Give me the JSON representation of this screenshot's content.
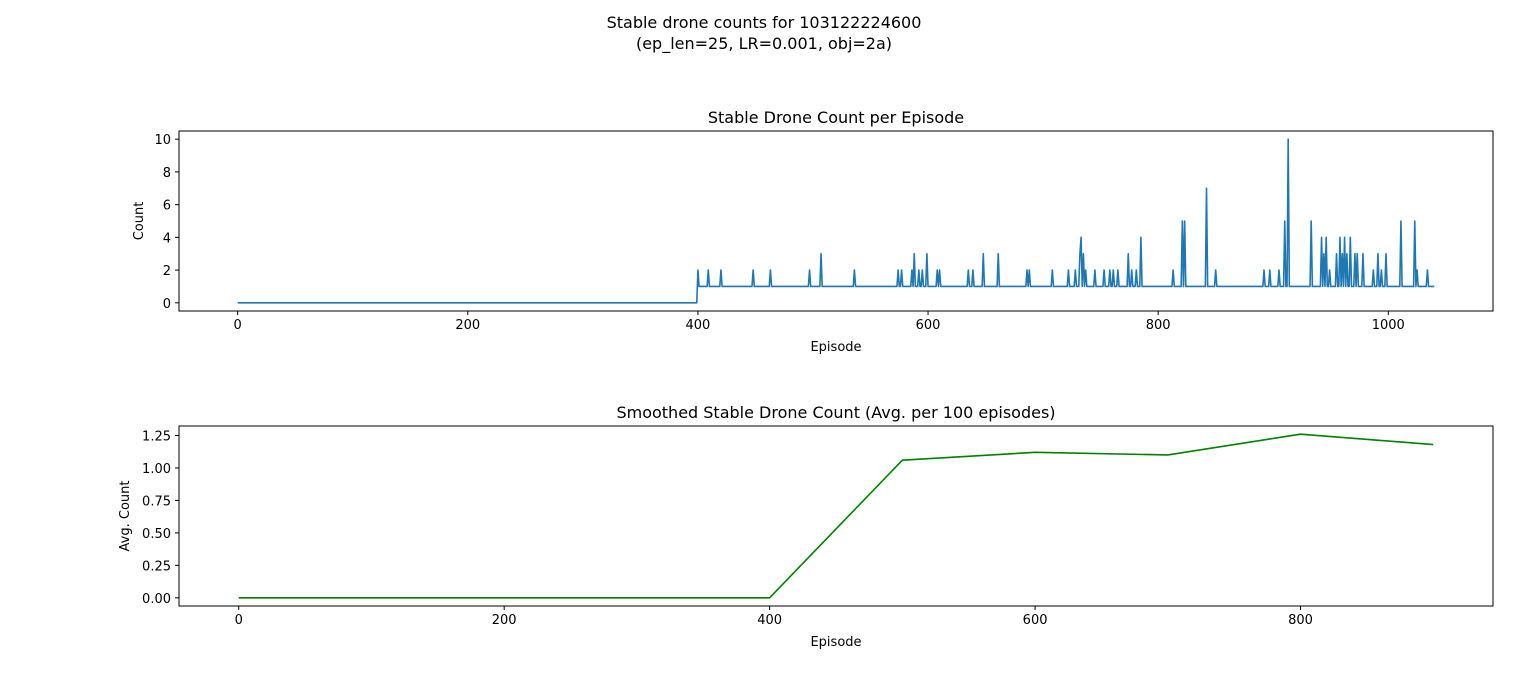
{
  "figure": {
    "suptitle_line1": "Stable drone counts for 103122224600",
    "suptitle_line2": "(ep_len=25, LR=0.001, obj=2a)"
  },
  "chart_data": [
    {
      "type": "line",
      "title": "Stable Drone Count per Episode",
      "xlabel": "Episode",
      "ylabel": "Count",
      "xlim": [
        -51,
        1091
      ],
      "ylim": [
        -0.5,
        10.5
      ],
      "xticks": [
        0,
        200,
        400,
        600,
        800,
        1000
      ],
      "yticks": [
        0,
        2,
        4,
        6,
        8,
        10
      ],
      "color": "#1f77b4",
      "grid": false,
      "series": [
        {
          "baseline_segments": [
            {
              "x_start": 0,
              "x_end": 399,
              "y": 0
            },
            {
              "x_start": 400,
              "x_end": 1040,
              "y": 1
            }
          ],
          "spikes": [
            {
              "x": 400,
              "y": 2
            },
            {
              "x": 409,
              "y": 2
            },
            {
              "x": 420,
              "y": 2
            },
            {
              "x": 448,
              "y": 2
            },
            {
              "x": 463,
              "y": 2
            },
            {
              "x": 497,
              "y": 2
            },
            {
              "x": 507,
              "y": 3
            },
            {
              "x": 536,
              "y": 2
            },
            {
              "x": 574,
              "y": 2
            },
            {
              "x": 577,
              "y": 2
            },
            {
              "x": 586,
              "y": 2
            },
            {
              "x": 588,
              "y": 3
            },
            {
              "x": 592,
              "y": 2
            },
            {
              "x": 595,
              "y": 2
            },
            {
              "x": 599,
              "y": 3
            },
            {
              "x": 608,
              "y": 2
            },
            {
              "x": 610,
              "y": 2
            },
            {
              "x": 635,
              "y": 2
            },
            {
              "x": 639,
              "y": 2
            },
            {
              "x": 648,
              "y": 3
            },
            {
              "x": 661,
              "y": 3
            },
            {
              "x": 686,
              "y": 2
            },
            {
              "x": 688,
              "y": 2
            },
            {
              "x": 708,
              "y": 2
            },
            {
              "x": 722,
              "y": 2
            },
            {
              "x": 728,
              "y": 2
            },
            {
              "x": 732,
              "y": 3
            },
            {
              "x": 733,
              "y": 4
            },
            {
              "x": 735,
              "y": 3
            },
            {
              "x": 737,
              "y": 2
            },
            {
              "x": 745,
              "y": 2
            },
            {
              "x": 753,
              "y": 2
            },
            {
              "x": 758,
              "y": 2
            },
            {
              "x": 761,
              "y": 2
            },
            {
              "x": 765,
              "y": 2
            },
            {
              "x": 774,
              "y": 3
            },
            {
              "x": 777,
              "y": 2
            },
            {
              "x": 781,
              "y": 2
            },
            {
              "x": 785,
              "y": 4
            },
            {
              "x": 813,
              "y": 2
            },
            {
              "x": 821,
              "y": 5
            },
            {
              "x": 823,
              "y": 5
            },
            {
              "x": 842,
              "y": 7
            },
            {
              "x": 850,
              "y": 2
            },
            {
              "x": 892,
              "y": 2
            },
            {
              "x": 897,
              "y": 2
            },
            {
              "x": 905,
              "y": 2
            },
            {
              "x": 910,
              "y": 5
            },
            {
              "x": 913,
              "y": 10
            },
            {
              "x": 933,
              "y": 5
            },
            {
              "x": 942,
              "y": 4
            },
            {
              "x": 944,
              "y": 3
            },
            {
              "x": 946,
              "y": 4
            },
            {
              "x": 949,
              "y": 2
            },
            {
              "x": 955,
              "y": 3
            },
            {
              "x": 958,
              "y": 4
            },
            {
              "x": 960,
              "y": 3
            },
            {
              "x": 962,
              "y": 4
            },
            {
              "x": 964,
              "y": 3
            },
            {
              "x": 967,
              "y": 4
            },
            {
              "x": 971,
              "y": 3
            },
            {
              "x": 973,
              "y": 3
            },
            {
              "x": 978,
              "y": 3
            },
            {
              "x": 987,
              "y": 2
            },
            {
              "x": 991,
              "y": 3
            },
            {
              "x": 994,
              "y": 2
            },
            {
              "x": 998,
              "y": 3
            },
            {
              "x": 1011,
              "y": 5
            },
            {
              "x": 1023,
              "y": 5
            },
            {
              "x": 1025,
              "y": 2
            },
            {
              "x": 1034,
              "y": 2
            }
          ]
        }
      ]
    },
    {
      "type": "line",
      "title": "Smoothed Stable Drone Count (Avg. per 100 episodes)",
      "xlabel": "Episode",
      "ylabel": "Avg. Count",
      "xlim": [
        -45,
        945
      ],
      "ylim": [
        -0.063,
        1.323
      ],
      "xticks": [
        0,
        200,
        400,
        600,
        800
      ],
      "yticks": [
        0.0,
        0.25,
        0.5,
        0.75,
        1.0,
        1.25
      ],
      "ytick_labels": [
        "0.00",
        "0.25",
        "0.50",
        "0.75",
        "1.00",
        "1.25"
      ],
      "color": "#008000",
      "grid": false,
      "series": [
        {
          "x": [
            0,
            100,
            200,
            300,
            400,
            500,
            600,
            700,
            800,
            900
          ],
          "values": [
            0,
            0,
            0,
            0,
            0,
            1.06,
            1.12,
            1.1,
            1.26,
            1.18
          ]
        }
      ]
    }
  ]
}
